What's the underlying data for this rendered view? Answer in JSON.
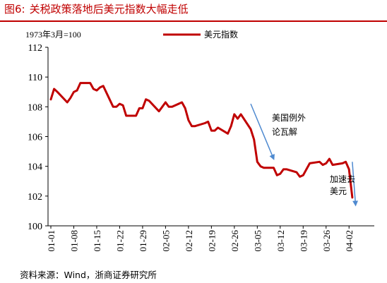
{
  "figure": {
    "number": "图6:",
    "title": "关税政策落地后美元指数大幅走低",
    "source": "资料来源：Wind，浙商证券研究所",
    "note": "1973年3月=100",
    "accent_color": "#c00000"
  },
  "chart_data": {
    "type": "line",
    "title": "关税政策落地后美元指数大幅走低",
    "xlabel": "",
    "ylabel": "",
    "ylim": [
      100,
      112
    ],
    "yticks": [
      100,
      102,
      104,
      106,
      108,
      110,
      112
    ],
    "xticks": [
      "01-01",
      "01-08",
      "01-15",
      "01-22",
      "01-29",
      "02-05",
      "02-12",
      "02-19",
      "02-26",
      "03-05",
      "03-12",
      "03-19",
      "03-26",
      "04-02"
    ],
    "grid": false,
    "legend_position": "top",
    "series": [
      {
        "name": "美元指数",
        "color": "#c00000",
        "x": [
          "01-01",
          "01-02",
          "01-03",
          "01-06",
          "01-07",
          "01-08",
          "01-09",
          "01-10",
          "01-13",
          "01-14",
          "01-15",
          "01-16",
          "01-17",
          "01-20",
          "01-21",
          "01-22",
          "01-23",
          "01-24",
          "01-27",
          "01-28",
          "01-29",
          "01-30",
          "01-31",
          "02-03",
          "02-04",
          "02-05",
          "02-06",
          "02-07",
          "02-10",
          "02-11",
          "02-12",
          "02-13",
          "02-14",
          "02-17",
          "02-18",
          "02-19",
          "02-20",
          "02-21",
          "02-24",
          "02-25",
          "02-26",
          "02-27",
          "02-28",
          "03-03",
          "03-04",
          "03-05",
          "03-06",
          "03-07",
          "03-10",
          "03-11",
          "03-12",
          "03-13",
          "03-14",
          "03-17",
          "03-18",
          "03-19",
          "03-20",
          "03-21",
          "03-24",
          "03-25",
          "03-26",
          "03-27",
          "03-28",
          "03-31",
          "04-01",
          "04-02",
          "04-03"
        ],
        "values": [
          108.5,
          109.2,
          109.0,
          108.3,
          108.6,
          109.0,
          109.1,
          109.6,
          109.6,
          109.2,
          109.1,
          109.3,
          109.4,
          108.0,
          108.0,
          108.2,
          108.1,
          107.4,
          107.4,
          107.9,
          107.9,
          108.5,
          108.4,
          107.7,
          108.0,
          108.3,
          108.0,
          108.0,
          108.3,
          107.9,
          107.1,
          106.7,
          106.7,
          106.9,
          107.0,
          106.4,
          106.4,
          106.6,
          106.2,
          106.7,
          107.5,
          107.2,
          107.5,
          106.5,
          105.8,
          104.3,
          104.0,
          103.9,
          103.9,
          103.4,
          103.5,
          103.8,
          103.8,
          103.6,
          103.3,
          103.4,
          103.8,
          104.2,
          104.3,
          104.1,
          104.2,
          104.5,
          104.1,
          104.2,
          104.3,
          103.8,
          101.9
        ]
      }
    ],
    "annotations": [
      {
        "text_lines": [
          "美国例外",
          "论瓦解"
        ],
        "x": "03-12",
        "y": 106.0,
        "arrow_from": [
          "03-03",
          108.2
        ],
        "arrow_to": [
          "03-10",
          104.5
        ]
      },
      {
        "text_lines": [
          "加速去",
          "美元"
        ],
        "x": "03-27",
        "y": 102.6,
        "arrow_from": [
          "04-03",
          104.3
        ],
        "arrow_to": [
          "04-04",
          101.4
        ]
      }
    ]
  }
}
